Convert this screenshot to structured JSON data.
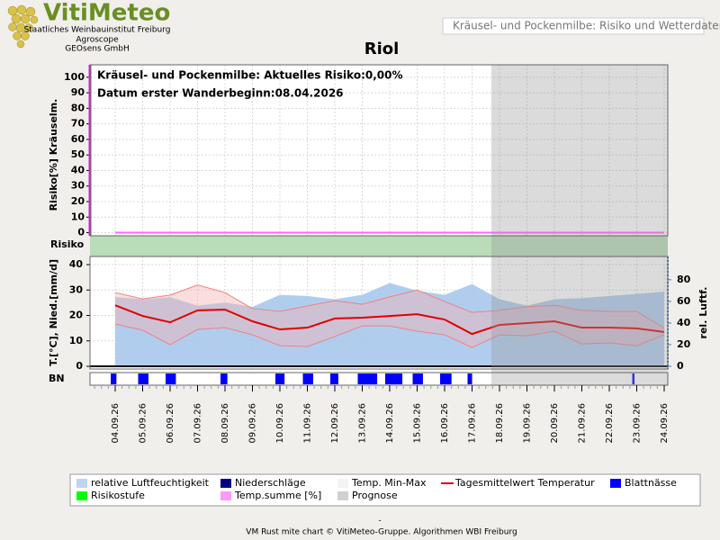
{
  "header": {
    "logo": "VitiMeteo",
    "lines": [
      "Staatliches Weinbauinstitut Freiburg",
      "Agroscope",
      "GEOsens GmbH"
    ],
    "page_title": "Kräusel- und Pockenmilbe: Risiko und Wetterdaten"
  },
  "chart_data": {
    "type": "combo",
    "title": "Riol",
    "categories": [
      "04.09.26",
      "05.09.26",
      "06.09.26",
      "07.09.26",
      "08.09.26",
      "09.09.26",
      "10.09.26",
      "11.09.26",
      "12.09.26",
      "13.09.26",
      "14.09.26",
      "15.09.26",
      "16.09.26",
      "17.09.26",
      "18.09.26",
      "19.09.26",
      "20.09.26",
      "21.09.26",
      "22.09.26",
      "23.09.26",
      "24.09.26"
    ],
    "forecast_start": "18.09.26",
    "risk": {
      "annotations": [
        "Kräusel- und Pockenmilbe: Aktuelles Risiko:0,00%",
        "Datum erster Wanderbeginn:08.04.2026"
      ],
      "ylabel": "Risiko[%] Kräuselm.",
      "ylim": [
        -2,
        108
      ],
      "yticks": [
        0,
        10,
        20,
        30,
        40,
        50,
        60,
        70,
        80,
        90,
        100
      ],
      "grid": true,
      "series": [
        {
          "color": "#ff66ff",
          "values": [
            0,
            0,
            0,
            0,
            0,
            0,
            0,
            0,
            0,
            0,
            0,
            0,
            0,
            0,
            0,
            0,
            0,
            0,
            0,
            0,
            0
          ]
        }
      ],
      "band_label": "Risiko",
      "band_color": "#b9dcb9"
    },
    "weather": {
      "ylabel": "T.[°C], Nied.[mm/d]",
      "y2label": "rel. Luftf.",
      "ylim": [
        0,
        40
      ],
      "yticks": [
        0,
        10,
        20,
        30,
        40
      ],
      "y2lim": [
        0,
        94
      ],
      "y2ticks": [
        0,
        20,
        40,
        60,
        80
      ],
      "humidity": {
        "color": "#a9c8ec",
        "axis": "y2",
        "values": [
          64,
          62,
          64,
          56,
          59,
          55,
          66,
          65,
          62,
          66,
          77,
          70,
          66,
          76,
          62,
          56,
          62,
          63,
          65,
          67,
          69
        ]
      },
      "precipitation": {
        "color": "#000080",
        "values": [
          0,
          0,
          0,
          0,
          0,
          0,
          0,
          0,
          0,
          0,
          0,
          0,
          0,
          0,
          0,
          0,
          0,
          0,
          0,
          0,
          0
        ]
      },
      "temp_range": {
        "color": "#f3b4b4",
        "line_color": "#f08080",
        "max": [
          29,
          26.5,
          28,
          32,
          29,
          22.7,
          21.6,
          23.7,
          25.8,
          24.4,
          27.3,
          30,
          25.5,
          21.2,
          22,
          23.4,
          24,
          22,
          21.6,
          21.6,
          15
        ],
        "min": [
          16.6,
          14.2,
          8.5,
          14.5,
          15.2,
          12.4,
          8.1,
          7.8,
          11.7,
          15.9,
          15.9,
          13.8,
          12.4,
          7.4,
          12.4,
          12,
          13.8,
          8.8,
          9.2,
          8.1,
          12.4
        ]
      },
      "temp_mean": {
        "color": "#e00000",
        "values": [
          24,
          19.8,
          17.3,
          22,
          22.3,
          17.7,
          14.5,
          15.2,
          18.8,
          19.1,
          19.8,
          20.5,
          18.4,
          12.7,
          16.3,
          17,
          17.7,
          15.2,
          15.2,
          14.9,
          13.5
        ]
      }
    },
    "leaf_wetness": {
      "label": "BN",
      "color": "#0000ff",
      "hours": [
        5,
        9,
        9,
        0,
        6,
        0,
        8,
        9,
        7,
        17,
        15,
        9,
        10,
        4,
        0,
        0,
        0,
        0,
        0,
        2,
        0
      ]
    }
  },
  "legend": {
    "items": [
      {
        "name": "relative Luftfeuchtigkeit",
        "color": "#bcd4f0"
      },
      {
        "name": "Niederschläge",
        "color": "#000080"
      },
      {
        "name": "Temp. Min-Max",
        "color": "#f4f4f4"
      },
      {
        "name": "Tagesmittelwert Temperatur",
        "color": "#e00000"
      },
      {
        "name": "Blattnässe",
        "color": "#0000ff"
      },
      {
        "name": "Risikostufe",
        "color": "#00ff00"
      },
      {
        "name": "Temp.summe [%]",
        "color": "#ff99ff"
      },
      {
        "name": "Prognose",
        "color": "#d0d0d0"
      }
    ]
  },
  "footer": {
    "dash": "-",
    "text": "VM Rust mite chart © VitiMeteo-Gruppe. Algorithmen WBI Freiburg"
  }
}
